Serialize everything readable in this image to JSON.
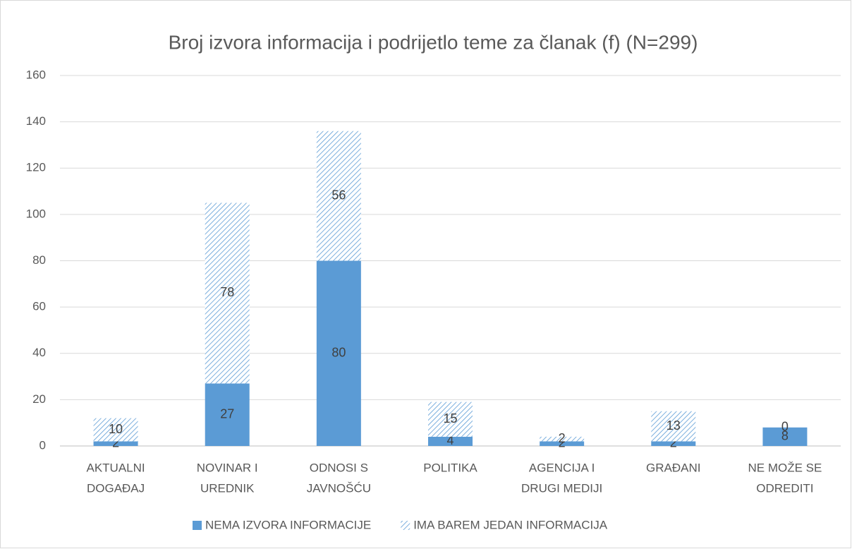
{
  "chart_data": {
    "type": "stacked_bar",
    "title": "Broj izvora informacija i podrijetlo teme za članak (f) (N=299)",
    "categories": [
      [
        "AKTUALNI",
        "DOGAĐAJ"
      ],
      [
        "NOVINAR I",
        "UREDNIK"
      ],
      [
        "ODNOSI S",
        "JAVNOŠĆU"
      ],
      [
        "POLITIKA"
      ],
      [
        "AGENCIJA I",
        "DRUGI MEDIJI"
      ],
      [
        "GRAĐANI"
      ],
      [
        "NE MOŽE SE",
        "ODREDITI"
      ]
    ],
    "series": [
      {
        "name": "NEMA IZVORA INFORMACIJE",
        "color": "#5b9bd5",
        "pattern": "solid",
        "values": [
          2,
          27,
          80,
          4,
          2,
          2,
          8
        ]
      },
      {
        "name": "IMA BAREM JEDAN INFORMACIJA",
        "color": "#5b9bd5",
        "pattern": "hatch",
        "values": [
          10,
          78,
          56,
          15,
          2,
          13,
          0
        ]
      }
    ],
    "ylim": [
      0,
      160
    ],
    "yticks": [
      0,
      20,
      40,
      60,
      80,
      100,
      120,
      140,
      160
    ],
    "grid": true,
    "legend": "bottom"
  }
}
